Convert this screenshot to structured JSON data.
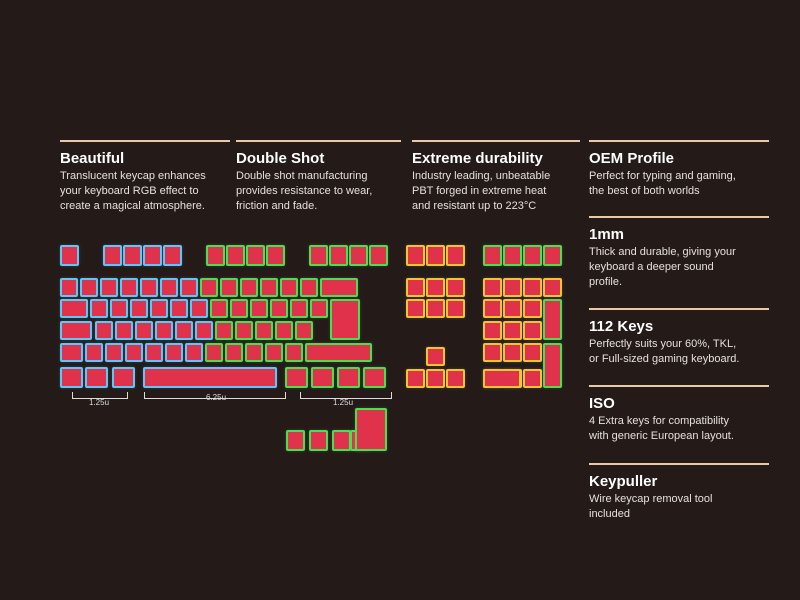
{
  "features": [
    {
      "title": "Beautiful",
      "desc": [
        "Translucent keycap enhances",
        "your keyboard RGB effect to",
        "create a magical atmosphere."
      ]
    },
    {
      "title": "Double Shot",
      "desc": [
        "Double shot manufacturing",
        "provides resistance to wear,",
        "friction and fade."
      ]
    },
    {
      "title": "Extreme durability",
      "desc": [
        "Industry leading, unbeatable",
        "PBT forged in extreme heat",
        "and resistant up to 223°C"
      ]
    },
    {
      "title": "OEM Profile",
      "desc": [
        "Perfect for typing and gaming,",
        "the best of both worlds"
      ]
    },
    {
      "title": "1mm",
      "desc": [
        "Thick and durable, giving your",
        "keyboard a deeper sound",
        "profile."
      ]
    },
    {
      "title": "112 Keys",
      "desc": [
        "Perfectly suits your 60%, TKL,",
        "or Full-sized gaming keyboard."
      ]
    },
    {
      "title": "ISO",
      "desc": [
        "4 Extra keys for compatibility",
        "with generic European layout."
      ]
    },
    {
      "title": "Keypuller",
      "desc": [
        "Wire keycap removal tool",
        "included"
      ]
    }
  ],
  "dimensions": {
    "left": "1.25u",
    "space": "6.25u",
    "right": "1.25u"
  },
  "colors": {
    "keycap": "#e0324a",
    "blue_glow": "#58c8ff",
    "green_glow": "#46e24e",
    "yellow_glow": "#f0c62e",
    "accent_rule": "#e8c9a8"
  }
}
